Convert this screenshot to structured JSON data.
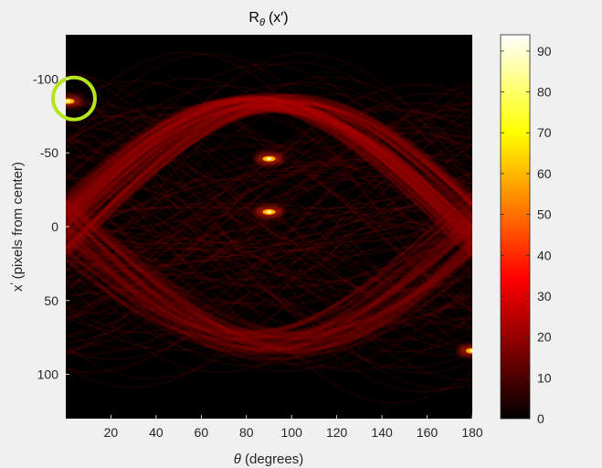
{
  "chart_data": {
    "type": "heatmap",
    "title": "R",
    "title_sub": "θ",
    "title_arg": "(x′)",
    "xlabel_sym": "θ",
    "xlabel_rest": " (degrees)",
    "ylabel_sym": "x",
    "ylabel_prime": "′",
    "ylabel_rest": " (pixels from center)",
    "xlim": [
      0,
      180
    ],
    "ylim": [
      -130,
      130
    ],
    "y_reversed": true,
    "x_ticks": [
      20,
      40,
      60,
      80,
      100,
      120,
      140,
      160,
      180
    ],
    "y_ticks": [
      -100,
      -50,
      0,
      50,
      100
    ],
    "colorbar": {
      "colormap": "hot",
      "clim": [
        0,
        94
      ],
      "ticks": [
        0,
        10,
        20,
        30,
        40,
        50,
        60,
        70,
        80,
        90
      ]
    },
    "peaks": [
      {
        "theta": 1,
        "x": -85,
        "value": 90
      },
      {
        "theta": 90,
        "x": -46,
        "value": 80
      },
      {
        "theta": 90,
        "x": -10,
        "value": 85
      },
      {
        "theta": 180,
        "x": 84,
        "value": 92
      }
    ],
    "highlight_circle": {
      "theta": 2,
      "x": -85,
      "color": "#b5e61d"
    }
  }
}
